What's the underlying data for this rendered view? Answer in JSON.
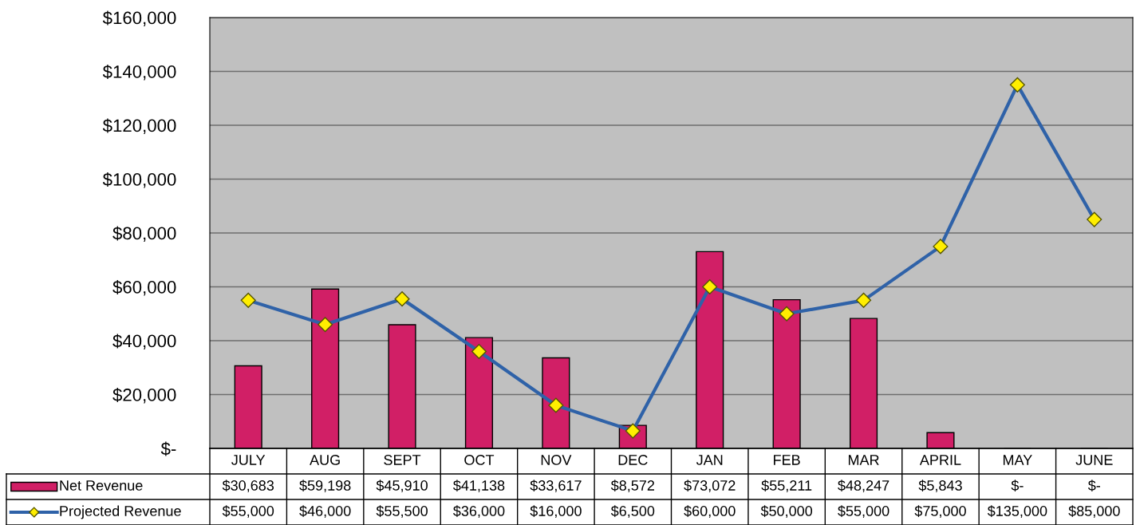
{
  "chart_data": {
    "type": "bar",
    "categories": [
      "JULY",
      "AUG",
      "SEPT",
      "OCT",
      "NOV",
      "DEC",
      "JAN",
      "FEB",
      "MAR",
      "APRIL",
      "MAY",
      "JUNE"
    ],
    "series": [
      {
        "name": "Net Revenue",
        "color": "#d11f66",
        "values": [
          30683,
          59198,
          45910,
          41138,
          33617,
          8572,
          73072,
          55211,
          48247,
          5843,
          0,
          0
        ],
        "value_labels": [
          "$30,683",
          "$59,198",
          "$45,910",
          "$41,138",
          "$33,617",
          "$8,572",
          "$73,072",
          "$55,211",
          "$48,247",
          "$5,843",
          "$-",
          "$-"
        ]
      },
      {
        "name": "Projected Revenue",
        "type": "line",
        "color": "#2f62a8",
        "marker": "diamond",
        "values": [
          55000,
          46000,
          55500,
          36000,
          16000,
          6500,
          60000,
          50000,
          55000,
          75000,
          135000,
          85000
        ],
        "value_labels": [
          "$55,000",
          "$46,000",
          "$55,500",
          "$36,000",
          "$16,000",
          "$6,500",
          "$60,000",
          "$50,000",
          "$55,000",
          "$75,000",
          "$135,000",
          "$85,000"
        ]
      }
    ],
    "ylim": [
      0,
      160000
    ],
    "yticks": [
      {
        "value": 0,
        "label": "$-"
      },
      {
        "value": 20000,
        "label": "$20,000"
      },
      {
        "value": 40000,
        "label": "$40,000"
      },
      {
        "value": 60000,
        "label": "$60,000"
      },
      {
        "value": 80000,
        "label": "$80,000"
      },
      {
        "value": 100000,
        "label": "$100,000"
      },
      {
        "value": 120000,
        "label": "$120,000"
      },
      {
        "value": 140000,
        "label": "$140,000"
      },
      {
        "value": 160000,
        "label": "$160,000"
      }
    ],
    "grid": "y",
    "legend": "bottom"
  }
}
